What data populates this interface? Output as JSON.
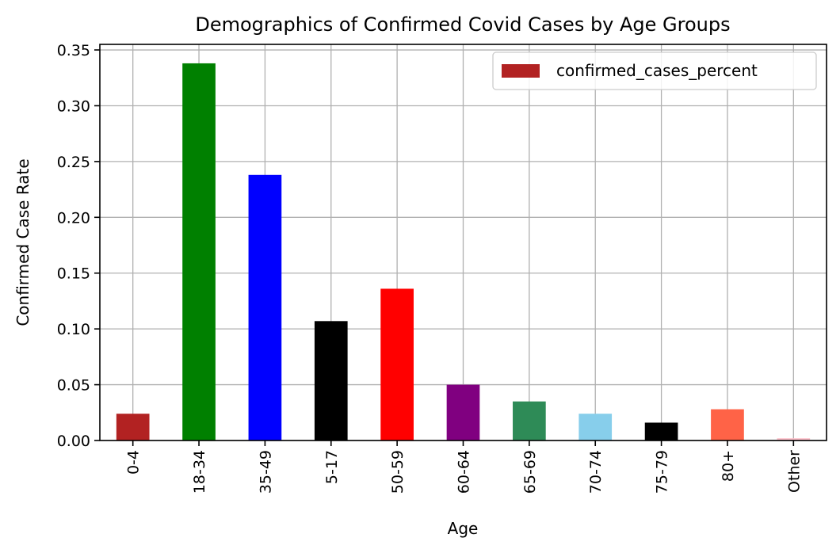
{
  "chart_data": {
    "type": "bar",
    "title": "Demographics of Confirmed Covid Cases by Age Groups",
    "xlabel": "Age",
    "ylabel": "Confirmed Case Rate",
    "categories": [
      "0-4",
      "18-34",
      "35-49",
      "5-17",
      "50-59",
      "60-64",
      "65-69",
      "70-74",
      "75-79",
      "80+",
      "Other"
    ],
    "series": [
      {
        "name": "confirmed_cases_percent",
        "values": [
          0.024,
          0.338,
          0.238,
          0.107,
          0.136,
          0.05,
          0.035,
          0.024,
          0.016,
          0.028,
          0.002
        ]
      }
    ],
    "colors": [
      "#b22222",
      "#008000",
      "#0000ff",
      "#000000",
      "#ff0000",
      "#800080",
      "#2e8b57",
      "#87ceeb",
      "#000000",
      "#ff6347",
      "#ffc0cb"
    ],
    "ylim": [
      0,
      0.355
    ],
    "yticks": [
      "0.00",
      "0.05",
      "0.10",
      "0.15",
      "0.20",
      "0.25",
      "0.30",
      "0.35"
    ],
    "ytick_values": [
      0,
      0.05,
      0.1,
      0.15,
      0.2,
      0.25,
      0.3,
      0.35
    ],
    "grid": true,
    "legend": {
      "position": "top-right",
      "label": "confirmed_cases_percent",
      "swatch_color": "#b22222"
    }
  }
}
